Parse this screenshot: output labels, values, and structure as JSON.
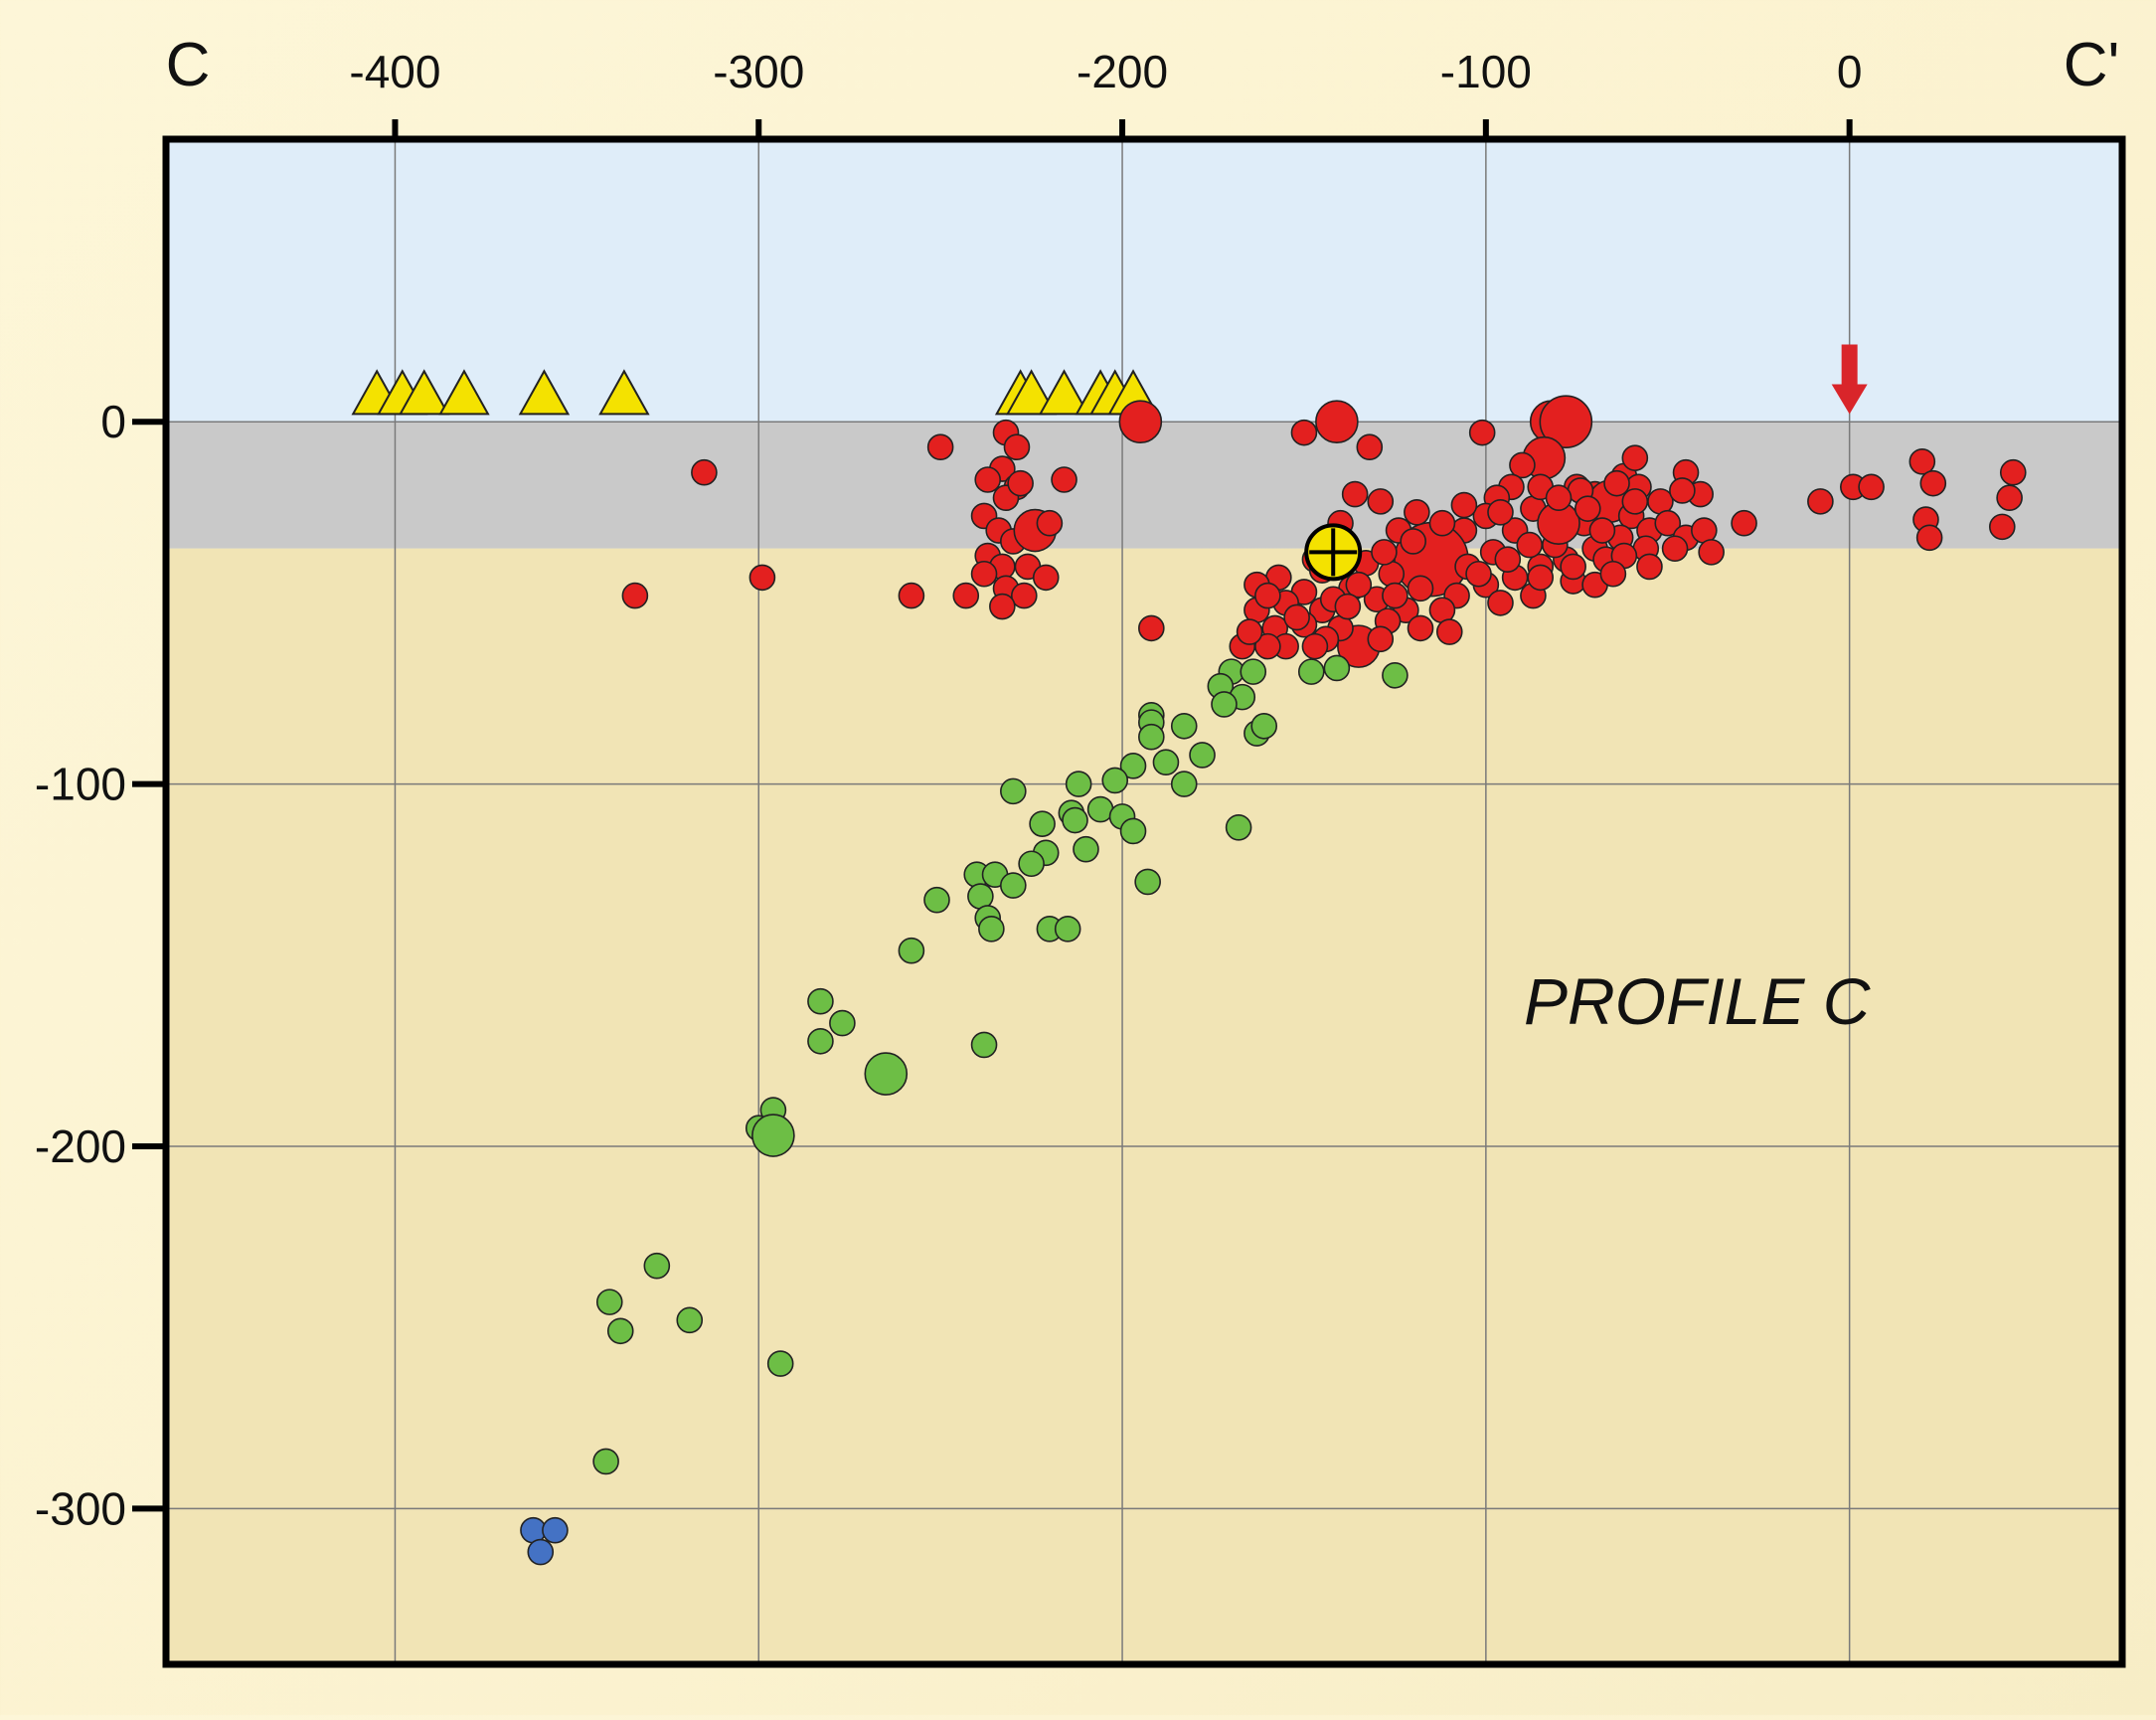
{
  "chart_data": {
    "type": "scatter",
    "title": "",
    "profile_label": "PROFILE C",
    "section_start_label": "C",
    "section_end_label": "C'",
    "xlim": [
      -463,
      75
    ],
    "ylim": [
      -343,
      78
    ],
    "x_ticks": [
      -400,
      -300,
      -200,
      -100,
      0
    ],
    "x_tick_labels": [
      "-400",
      "-300",
      "-200",
      "-100",
      "0"
    ],
    "y_ticks": [
      0,
      -100,
      -200,
      -300
    ],
    "y_tick_labels": [
      "0",
      "-100",
      "-200",
      "-300"
    ],
    "grid": true,
    "layers": [
      {
        "name": "air",
        "y_top": 78,
        "y_bottom": 0,
        "color": "#dfedf9"
      },
      {
        "name": "upper crust",
        "y_top": 0,
        "y_bottom": -35,
        "color": "#c9c9c9"
      },
      {
        "name": "lower",
        "y_top": -35,
        "y_bottom": -343,
        "color": "#f1e4b5"
      }
    ],
    "volcano_marker": {
      "x": 0,
      "y": 12,
      "color": "#d9252a"
    },
    "hypocenter_marker": {
      "x": -142,
      "y": -36,
      "color": "#f4e200"
    },
    "triangles": {
      "color": "#f4e200",
      "points": [
        [
          -405,
          6
        ],
        [
          -398,
          6
        ],
        [
          -392,
          6
        ],
        [
          -381,
          6
        ],
        [
          -359,
          6
        ],
        [
          -337,
          6
        ],
        [
          -228,
          6
        ],
        [
          -225,
          6
        ],
        [
          -216,
          6
        ],
        [
          -206,
          6
        ],
        [
          -202,
          6
        ],
        [
          -197,
          6
        ]
      ]
    },
    "series": [
      {
        "color": "#e3201f",
        "points": [
          [
            -315,
            -14,
            1
          ],
          [
            -334,
            -48,
            1
          ],
          [
            -299,
            -43,
            1
          ],
          [
            -250,
            -7,
            1
          ],
          [
            -258,
            -48,
            1
          ],
          [
            -243,
            -48,
            1
          ],
          [
            -232,
            -3,
            1
          ],
          [
            -229,
            -7,
            1
          ],
          [
            -233,
            -13,
            1
          ],
          [
            -237,
            -16,
            1
          ],
          [
            -229,
            -18,
            1
          ],
          [
            -232,
            -21,
            1
          ],
          [
            -228,
            -17,
            1
          ],
          [
            -216,
            -16,
            1
          ],
          [
            -238,
            -26,
            1
          ],
          [
            -234,
            -30,
            1
          ],
          [
            -230,
            -33,
            1
          ],
          [
            -224,
            -30,
            2
          ],
          [
            -220,
            -28,
            1
          ],
          [
            -237,
            -37,
            1
          ],
          [
            -233,
            -40,
            1
          ],
          [
            -226,
            -40,
            1
          ],
          [
            -221,
            -43,
            1
          ],
          [
            -232,
            -46,
            1
          ],
          [
            -227,
            -48,
            1
          ],
          [
            -233,
            -51,
            1
          ],
          [
            -238,
            -42,
            1
          ],
          [
            -195,
            0,
            2
          ],
          [
            -192,
            -57,
            1
          ],
          [
            -150,
            -3,
            1
          ],
          [
            -141,
            0,
            2
          ],
          [
            -132,
            -7,
            1
          ],
          [
            -101,
            -3,
            1
          ],
          [
            -82,
            0,
            2
          ],
          [
            -78,
            0,
            3
          ],
          [
            -84,
            -10,
            2
          ],
          [
            -90,
            -12,
            1
          ],
          [
            -75,
            -18,
            1
          ],
          [
            -93,
            -18,
            1
          ],
          [
            -97,
            -21,
            1
          ],
          [
            -87,
            -24,
            1
          ],
          [
            -70,
            -20,
            1
          ],
          [
            -66,
            -22,
            2
          ],
          [
            -60,
            -26,
            1
          ],
          [
            -55,
            -30,
            1
          ],
          [
            -63,
            -32,
            1
          ],
          [
            -70,
            -35,
            1
          ],
          [
            -78,
            -38,
            1
          ],
          [
            -85,
            -40,
            1
          ],
          [
            -92,
            -43,
            1
          ],
          [
            -100,
            -45,
            1
          ],
          [
            -81,
            -34,
            1
          ],
          [
            -73,
            -28,
            1
          ],
          [
            -92,
            -30,
            1
          ],
          [
            -100,
            -26,
            1
          ],
          [
            -106,
            -30,
            1
          ],
          [
            -110,
            -35,
            1
          ],
          [
            -115,
            -38,
            4
          ],
          [
            -105,
            -40,
            1
          ],
          [
            -118,
            -46,
            1
          ],
          [
            -108,
            -48,
            1
          ],
          [
            -112,
            -52,
            1
          ],
          [
            -126,
            -42,
            1
          ],
          [
            -133,
            -39,
            1
          ],
          [
            -137,
            -46,
            1
          ],
          [
            -130,
            -49,
            1
          ],
          [
            -122,
            -52,
            1
          ],
          [
            -127,
            -55,
            1
          ],
          [
            -135,
            -62,
            2
          ],
          [
            -140,
            -57,
            1
          ],
          [
            -145,
            -52,
            1
          ],
          [
            -150,
            -47,
            1
          ],
          [
            -157,
            -43,
            1
          ],
          [
            -155,
            -50,
            1
          ],
          [
            -150,
            -56,
            1
          ],
          [
            -144,
            -60,
            1
          ],
          [
            -158,
            -57,
            1
          ],
          [
            -163,
            -52,
            1
          ],
          [
            -155,
            -62,
            1
          ],
          [
            -160,
            -62,
            1
          ],
          [
            -167,
            -62,
            1
          ],
          [
            -163,
            -45,
            1
          ],
          [
            -147,
            -38,
            1
          ],
          [
            -140,
            -28,
            1
          ],
          [
            -136,
            -20,
            1
          ],
          [
            -129,
            -22,
            1
          ],
          [
            -124,
            -30,
            1
          ],
          [
            -119,
            -25,
            1
          ],
          [
            -106,
            -23,
            1
          ],
          [
            -96,
            -25,
            1
          ],
          [
            -80,
            -28,
            2
          ],
          [
            -76,
            -44,
            1
          ],
          [
            -70,
            -45,
            1
          ],
          [
            -67,
            -38,
            1
          ],
          [
            -87,
            -48,
            1
          ],
          [
            -96,
            -50,
            1
          ],
          [
            -88,
            -34,
            1
          ],
          [
            -98,
            -36,
            1
          ],
          [
            -102,
            -42,
            1
          ],
          [
            -74,
            -19,
            1
          ],
          [
            -62,
            -15,
            1
          ],
          [
            -58,
            -18,
            1
          ],
          [
            -52,
            -22,
            1
          ],
          [
            -50,
            -28,
            1
          ],
          [
            -45,
            -32,
            1
          ],
          [
            -56,
            -35,
            1
          ],
          [
            -62,
            -37,
            1
          ],
          [
            -85,
            -18,
            1
          ],
          [
            -80,
            -21,
            1
          ],
          [
            -72,
            -24,
            1
          ],
          [
            -68,
            -30,
            1
          ],
          [
            -59,
            -22,
            1
          ],
          [
            -64,
            -17,
            1
          ],
          [
            -112,
            -28,
            1
          ],
          [
            -120,
            -33,
            1
          ],
          [
            -128,
            -36,
            1
          ],
          [
            -141,
            -34,
            1
          ],
          [
            -145,
            -41,
            1
          ],
          [
            -135,
            -45,
            1
          ],
          [
            -125,
            -48,
            1
          ],
          [
            -142,
            -49,
            1
          ],
          [
            -152,
            -54,
            1
          ],
          [
            -147,
            -62,
            1
          ],
          [
            -138,
            -51,
            1
          ],
          [
            -118,
            -57,
            1
          ],
          [
            -110,
            -58,
            1
          ],
          [
            -129,
            -60,
            1
          ],
          [
            -160,
            -48,
            1
          ],
          [
            -165,
            -58,
            1
          ],
          [
            -94,
            -38,
            1
          ],
          [
            -85,
            -43,
            1
          ],
          [
            -76,
            -40,
            1
          ],
          [
            -65,
            -42,
            1
          ],
          [
            -55,
            -40,
            1
          ],
          [
            -48,
            -35,
            1
          ],
          [
            -59,
            -10,
            1
          ],
          [
            -45,
            -14,
            1
          ],
          [
            -41,
            -20,
            1
          ],
          [
            -46,
            -19,
            1
          ],
          [
            -40,
            -30,
            1
          ],
          [
            -38,
            -36,
            1
          ],
          [
            -29,
            -28,
            1
          ],
          [
            -8,
            -22,
            1
          ],
          [
            1,
            -18,
            1
          ],
          [
            6,
            -18,
            1
          ],
          [
            20,
            -11,
            1
          ],
          [
            23,
            -17,
            1
          ],
          [
            21,
            -27,
            1
          ],
          [
            22,
            -32,
            1
          ],
          [
            45,
            -14,
            1
          ],
          [
            44,
            -21,
            1
          ],
          [
            42,
            -29,
            1
          ]
        ]
      },
      {
        "color": "#6dbe45",
        "points": [
          [
            -170,
            -69,
            1
          ],
          [
            -164,
            -69,
            1
          ],
          [
            -173,
            -73,
            1
          ],
          [
            -167,
            -76,
            1
          ],
          [
            -172,
            -78,
            1
          ],
          [
            -148,
            -69,
            1
          ],
          [
            -141,
            -68,
            1
          ],
          [
            -125,
            -70,
            1
          ],
          [
            -163,
            -86,
            1
          ],
          [
            -161,
            -84,
            1
          ],
          [
            -183,
            -84,
            1
          ],
          [
            -178,
            -92,
            1
          ],
          [
            -192,
            -81,
            1
          ],
          [
            -192,
            -83,
            1
          ],
          [
            -192,
            -87,
            1
          ],
          [
            -188,
            -94,
            1
          ],
          [
            -197,
            -95,
            1
          ],
          [
            -202,
            -99,
            1
          ],
          [
            -183,
            -100,
            1
          ],
          [
            -168,
            -112,
            1
          ],
          [
            -212,
            -100,
            1
          ],
          [
            -230,
            -102,
            1
          ],
          [
            -214,
            -108,
            1
          ],
          [
            -206,
            -107,
            1
          ],
          [
            -200,
            -109,
            1
          ],
          [
            -197,
            -113,
            1
          ],
          [
            -213,
            -110,
            1
          ],
          [
            -222,
            -111,
            1
          ],
          [
            -210,
            -118,
            1
          ],
          [
            -221,
            -119,
            1
          ],
          [
            -225,
            -122,
            1
          ],
          [
            -193,
            -127,
            1
          ],
          [
            -240,
            -125,
            1
          ],
          [
            -235,
            -125,
            1
          ],
          [
            -239,
            -131,
            1
          ],
          [
            -237,
            -137,
            1
          ],
          [
            -236,
            -140,
            1
          ],
          [
            -251,
            -132,
            1
          ],
          [
            -230,
            -128,
            1
          ],
          [
            -220,
            -140,
            1
          ],
          [
            -215,
            -140,
            1
          ],
          [
            -258,
            -146,
            1
          ],
          [
            -283,
            -160,
            1
          ],
          [
            -277,
            -166,
            1
          ],
          [
            -283,
            -171,
            1
          ],
          [
            -238,
            -172,
            1
          ],
          [
            -265,
            -180,
            2
          ],
          [
            -300,
            -195,
            1
          ],
          [
            -296,
            -190,
            1
          ],
          [
            -296,
            -197,
            2
          ],
          [
            -328,
            -233,
            1
          ],
          [
            -341,
            -243,
            1
          ],
          [
            -338,
            -251,
            1
          ],
          [
            -319,
            -248,
            1
          ],
          [
            -294,
            -260,
            1
          ],
          [
            -342,
            -287,
            1
          ]
        ]
      },
      {
        "color": "#4472c4",
        "points": [
          [
            -362,
            -306,
            1
          ],
          [
            -356,
            -306,
            1
          ],
          [
            -360,
            -312,
            1
          ]
        ]
      }
    ]
  }
}
